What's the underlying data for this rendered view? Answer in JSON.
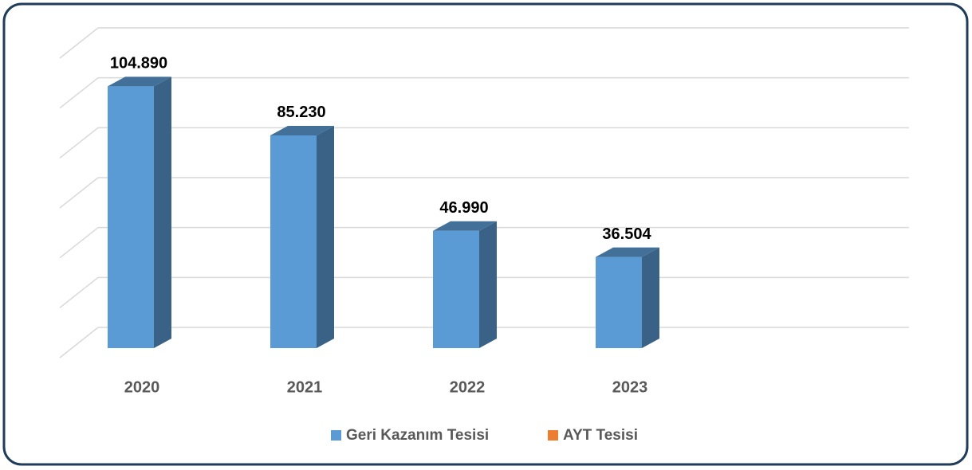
{
  "chart_data": {
    "type": "bar3d",
    "categories": [
      "2020",
      "2021",
      "2022",
      "2023"
    ],
    "series": [
      {
        "name": "Geri Kazanım Tesisi",
        "color": "#5b9bd5",
        "values": [
          104890,
          85230,
          46990,
          36504
        ],
        "value_labels": [
          "104.890",
          "85.230",
          "46.990",
          "36.504"
        ]
      },
      {
        "name": "AYT Tesisi",
        "color": "#ed7d31",
        "values": [
          null,
          null,
          null,
          null
        ]
      }
    ],
    "ylim": [
      0,
      120000
    ],
    "yticks": [
      0,
      20000,
      40000,
      60000,
      80000,
      100000,
      120000
    ],
    "grid": true,
    "legend": "bottom"
  }
}
